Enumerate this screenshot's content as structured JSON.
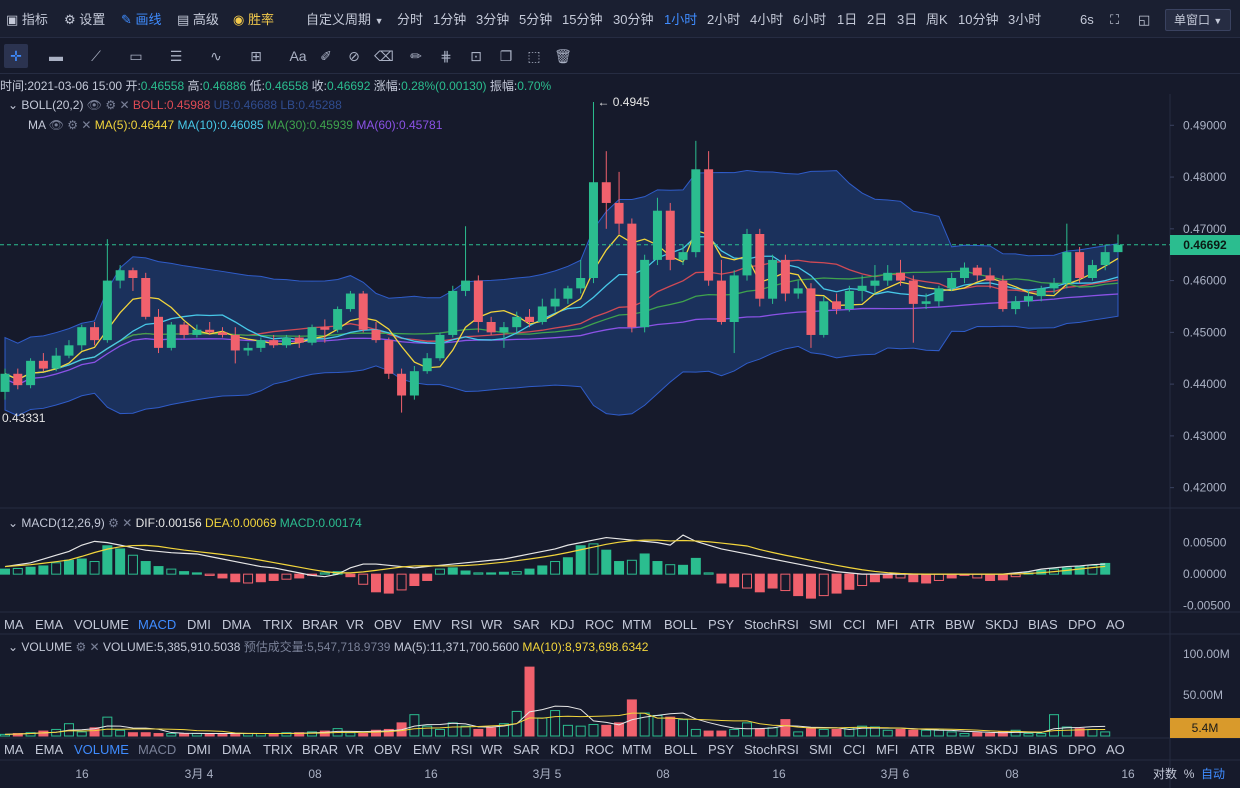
{
  "topbar": {
    "items": [
      {
        "label": "指标",
        "icon": "indicator-icon"
      },
      {
        "label": "设置",
        "icon": "gear-icon"
      },
      {
        "label": "画线",
        "icon": "pen-icon",
        "active": true
      },
      {
        "label": "高级",
        "icon": "advanced-icon"
      },
      {
        "label": "胜率",
        "icon": "winrate-icon"
      }
    ],
    "custom_period": "自定义周期",
    "periods": [
      "分时",
      "1分钟",
      "3分钟",
      "5分钟",
      "15分钟",
      "30分钟",
      "1小时",
      "2小时",
      "4小时",
      "6小时",
      "1日",
      "2日",
      "3日",
      "周K",
      "10分钟",
      "3小时"
    ],
    "active_period": "1小时",
    "refresh": "6s",
    "window_mode": "单窗口"
  },
  "toolbar": {
    "tools": [
      "crosshair-icon",
      "ruler-icon",
      "trendline-icon",
      "rectangle-icon",
      "parallel-lines-icon",
      "wave-icon",
      "expand-icon",
      "text-tool",
      "brush-icon",
      "magnet-icon",
      "eraser-icon",
      "pencil-icon",
      "fib-icon",
      "lock-icon",
      "copy-icon",
      "capture-icon",
      "trash-icon"
    ],
    "text_tool_label": "Aa"
  },
  "info": {
    "time_label": "时间:",
    "time": "2021-03-06 15:00",
    "open_label": "开:",
    "open": "0.46558",
    "high_label": "高:",
    "high": "0.46886",
    "low_label": "低:",
    "low": "0.46558",
    "close_label": "收:",
    "close": "0.46692",
    "change_label": "涨幅:",
    "change": "0.28%(0.00130)",
    "amp_label": "振幅:",
    "amp": "0.70%"
  },
  "legends": {
    "boll_name": "BOLL(20,2)",
    "boll_mid": "BOLL:0.45988",
    "boll_ub": "UB:0.46688",
    "boll_lb": "LB:0.45288",
    "ma_name": "MA",
    "ma5": "MA(5):0.46447",
    "ma10": "MA(10):0.46085",
    "ma30": "MA(30):0.45939",
    "ma60": "MA(60):0.45781",
    "macd_name": "MACD(12,26,9)",
    "dif": "DIF:0.00156",
    "dea": "DEA:0.00069",
    "macd": "MACD:0.00174",
    "vol_name": "VOLUME",
    "vol": "VOLUME:5,385,910.5038",
    "vol_est": "预估成交量:5,547,718.9739",
    "vol_ma5": "MA(5):11,371,700.5600",
    "vol_ma10": "MA(10):8,973,698.6342"
  },
  "indicator_tabs": [
    "MA",
    "EMA",
    "VOLUME",
    "MACD",
    "DMI",
    "DMA",
    "TRIX",
    "BRAR",
    "VR",
    "OBV",
    "EMV",
    "RSI",
    "WR",
    "SAR",
    "KDJ",
    "ROC",
    "MTM",
    "BOLL",
    "PSY",
    "StochRSI",
    "SMI",
    "CCI",
    "MFI",
    "ATR",
    "BBW",
    "SKDJ",
    "BIAS",
    "DPO",
    "AO"
  ],
  "indicator_tabs_active_1": "MACD",
  "indicator_tabs_active_2": "VOLUME",
  "price_axis": [
    "0.49000",
    "0.48000",
    "0.47000",
    "0.46000",
    "0.45000",
    "0.44000",
    "0.43000",
    "0.42000"
  ],
  "macd_axis": [
    "0.00500",
    "0.00000",
    "-0.00500"
  ],
  "vol_axis": [
    "100.00M",
    "50.00M"
  ],
  "current_price": "0.46692",
  "current_volume": "5.4M",
  "high_marker": "← 0.4945",
  "low_marker": "0.43331",
  "time_axis": [
    "16",
    "3月 4",
    "08",
    "16",
    "3月 5",
    "08",
    "16",
    "3月 6",
    "08",
    "16"
  ],
  "bottom_right": {
    "log": "对数",
    "pct": "%",
    "auto": "自动"
  },
  "colors": {
    "up": "#2bbd8f",
    "down": "#f0616d",
    "ma5": "#f2d53c",
    "ma10": "#47c8e8",
    "ma30": "#3fa34d",
    "ma60": "#8b52e6",
    "boll_mid": "#d04a55",
    "band": "#1d3a6e",
    "accent": "#3f8cff"
  },
  "chart_data": {
    "type": "candlestick",
    "interval": "1h",
    "x_range": [
      "2021-03-03 15:00",
      "2021-03-06 15:00"
    ],
    "candles": [
      [
        0.4385,
        0.442,
        0.437,
        0.443
      ],
      [
        0.442,
        0.4398,
        0.439,
        0.443
      ],
      [
        0.4398,
        0.4445,
        0.4392,
        0.445
      ],
      [
        0.4445,
        0.443,
        0.4425,
        0.446
      ],
      [
        0.443,
        0.4455,
        0.4425,
        0.447
      ],
      [
        0.4455,
        0.4475,
        0.445,
        0.4485
      ],
      [
        0.4475,
        0.451,
        0.4465,
        0.4515
      ],
      [
        0.451,
        0.4485,
        0.4475,
        0.452
      ],
      [
        0.4485,
        0.46,
        0.448,
        0.468
      ],
      [
        0.46,
        0.462,
        0.4585,
        0.463
      ],
      [
        0.462,
        0.4605,
        0.458,
        0.4625
      ],
      [
        0.4605,
        0.453,
        0.4525,
        0.4615
      ],
      [
        0.453,
        0.447,
        0.446,
        0.4545
      ],
      [
        0.447,
        0.4515,
        0.4465,
        0.452
      ],
      [
        0.4515,
        0.4495,
        0.4488,
        0.452
      ],
      [
        0.4495,
        0.4505,
        0.449,
        0.4515
      ],
      [
        0.4505,
        0.45,
        0.4495,
        0.452
      ],
      [
        0.45,
        0.4495,
        0.449,
        0.451
      ],
      [
        0.4495,
        0.4465,
        0.444,
        0.451
      ],
      [
        0.4465,
        0.447,
        0.4455,
        0.448
      ],
      [
        0.447,
        0.4485,
        0.4462,
        0.449
      ],
      [
        0.4485,
        0.4475,
        0.447,
        0.4495
      ],
      [
        0.4475,
        0.449,
        0.447,
        0.4495
      ],
      [
        0.449,
        0.448,
        0.447,
        0.4495
      ],
      [
        0.448,
        0.451,
        0.4475,
        0.4515
      ],
      [
        0.451,
        0.4505,
        0.448,
        0.4525
      ],
      [
        0.4505,
        0.4545,
        0.45,
        0.455
      ],
      [
        0.4545,
        0.4575,
        0.454,
        0.458
      ],
      [
        0.4575,
        0.4505,
        0.45,
        0.458
      ],
      [
        0.4505,
        0.4485,
        0.448,
        0.452
      ],
      [
        0.4485,
        0.442,
        0.441,
        0.449
      ],
      [
        0.442,
        0.4378,
        0.4345,
        0.443
      ],
      [
        0.4378,
        0.4425,
        0.437,
        0.4435
      ],
      [
        0.4425,
        0.445,
        0.442,
        0.446
      ],
      [
        0.445,
        0.4495,
        0.4445,
        0.45
      ],
      [
        0.4495,
        0.458,
        0.449,
        0.459
      ],
      [
        0.458,
        0.46,
        0.457,
        0.4705
      ],
      [
        0.46,
        0.452,
        0.45,
        0.461
      ],
      [
        0.452,
        0.45,
        0.4495,
        0.453
      ],
      [
        0.45,
        0.451,
        0.447,
        0.452
      ],
      [
        0.451,
        0.453,
        0.45,
        0.454
      ],
      [
        0.453,
        0.452,
        0.451,
        0.4545
      ],
      [
        0.452,
        0.455,
        0.4515,
        0.4565
      ],
      [
        0.455,
        0.4565,
        0.454,
        0.4585
      ],
      [
        0.4565,
        0.4585,
        0.4555,
        0.459
      ],
      [
        0.4585,
        0.4605,
        0.4575,
        0.464
      ],
      [
        0.4605,
        0.479,
        0.4595,
        0.4945
      ],
      [
        0.479,
        0.475,
        0.47,
        0.485
      ],
      [
        0.475,
        0.471,
        0.469,
        0.481
      ],
      [
        0.471,
        0.451,
        0.45,
        0.472
      ],
      [
        0.451,
        0.464,
        0.45,
        0.465
      ],
      [
        0.464,
        0.4735,
        0.463,
        0.476
      ],
      [
        0.4735,
        0.464,
        0.462,
        0.475
      ],
      [
        0.464,
        0.4655,
        0.463,
        0.467
      ],
      [
        0.4655,
        0.4815,
        0.4645,
        0.487
      ],
      [
        0.4815,
        0.46,
        0.459,
        0.485
      ],
      [
        0.46,
        0.452,
        0.4515,
        0.464
      ],
      [
        0.452,
        0.461,
        0.446,
        0.462
      ],
      [
        0.461,
        0.469,
        0.46,
        0.47
      ],
      [
        0.469,
        0.4565,
        0.455,
        0.47
      ],
      [
        0.4565,
        0.464,
        0.4555,
        0.465
      ],
      [
        0.464,
        0.4575,
        0.456,
        0.465
      ],
      [
        0.4575,
        0.4585,
        0.4565,
        0.46
      ],
      [
        0.4585,
        0.4495,
        0.447,
        0.4595
      ],
      [
        0.4495,
        0.456,
        0.449,
        0.457
      ],
      [
        0.456,
        0.4545,
        0.4535,
        0.4575
      ],
      [
        0.4545,
        0.458,
        0.454,
        0.459
      ],
      [
        0.458,
        0.459,
        0.456,
        0.461
      ],
      [
        0.459,
        0.46,
        0.4575,
        0.463
      ],
      [
        0.46,
        0.4615,
        0.459,
        0.463
      ],
      [
        0.4615,
        0.46,
        0.459,
        0.464
      ],
      [
        0.46,
        0.4555,
        0.448,
        0.461
      ],
      [
        0.4555,
        0.456,
        0.4545,
        0.4575
      ],
      [
        0.456,
        0.4585,
        0.455,
        0.459
      ],
      [
        0.4585,
        0.4605,
        0.458,
        0.4615
      ],
      [
        0.4605,
        0.4625,
        0.4595,
        0.4635
      ],
      [
        0.4625,
        0.461,
        0.46,
        0.463
      ],
      [
        0.461,
        0.46,
        0.4585,
        0.4625
      ],
      [
        0.46,
        0.4545,
        0.454,
        0.461
      ],
      [
        0.4545,
        0.456,
        0.4535,
        0.457
      ],
      [
        0.456,
        0.457,
        0.455,
        0.458
      ],
      [
        0.457,
        0.4585,
        0.456,
        0.459
      ],
      [
        0.4585,
        0.4595,
        0.4575,
        0.4605
      ],
      [
        0.4595,
        0.4655,
        0.4585,
        0.471
      ],
      [
        0.4655,
        0.4605,
        0.4595,
        0.4665
      ],
      [
        0.4605,
        0.463,
        0.46,
        0.464
      ],
      [
        0.463,
        0.4655,
        0.462,
        0.467
      ],
      [
        0.4655,
        0.4669,
        0.4655,
        0.4689
      ]
    ],
    "macd_hist": [
      0.0008,
      0.0009,
      0.0011,
      0.0013,
      0.0018,
      0.0022,
      0.0024,
      0.002,
      0.0045,
      0.004,
      0.003,
      0.002,
      0.0012,
      0.0008,
      0.0004,
      0.0002,
      -0.0002,
      -0.0006,
      -0.0012,
      -0.0014,
      -0.0012,
      -0.001,
      -0.0008,
      -0.0006,
      -0.0002,
      0.0002,
      0.0004,
      -0.0004,
      -0.0016,
      -0.0028,
      -0.003,
      -0.0025,
      -0.0018,
      -0.001,
      0.0008,
      0.001,
      0.0005,
      0.0002,
      0.0002,
      0.0003,
      0.0004,
      0.0008,
      0.0013,
      0.002,
      0.0026,
      0.0045,
      0.0048,
      0.0038,
      0.002,
      0.0022,
      0.0032,
      0.002,
      0.0015,
      0.0014,
      0.0025,
      0.0002,
      -0.0014,
      -0.002,
      -0.0022,
      -0.0028,
      -0.0022,
      -0.0026,
      -0.0034,
      -0.0038,
      -0.0034,
      -0.003,
      -0.0024,
      -0.0018,
      -0.0012,
      -0.0006,
      -0.0006,
      -0.0012,
      -0.0014,
      -0.001,
      -0.0006,
      -0.0002,
      -0.0006,
      -0.001,
      -0.0009,
      -0.0004,
      0.0002,
      0.0006,
      0.0008,
      0.001,
      0.0012,
      0.0014,
      0.0017
    ],
    "macd_dif": [
      0.0012,
      0.0015,
      0.0018,
      0.0024,
      0.003,
      0.0036,
      0.0046,
      0.0052,
      0.005,
      0.0046,
      0.0042,
      0.0038,
      0.0036,
      0.0034,
      0.0033,
      0.0032,
      0.0028,
      0.0024,
      0.002,
      0.0016,
      0.0012,
      0.001,
      0.0006,
      0.0002,
      -0.0002,
      -0.0004,
      0.0,
      0.001,
      0.0016,
      0.0016,
      0.0014,
      0.0012,
      0.001,
      0.0012,
      0.0014,
      0.0016,
      0.0018,
      0.002,
      0.0022,
      0.0024,
      0.0028,
      0.0032,
      0.0036,
      0.004,
      0.0046,
      0.005,
      0.0054,
      0.0058,
      0.0056,
      0.0054,
      0.0052,
      0.005,
      0.0046,
      0.0062,
      0.0052,
      0.0046,
      0.004,
      0.0036,
      0.0032,
      0.0028,
      0.0024,
      0.002,
      0.0016,
      0.0012,
      0.0008,
      0.0004,
      0.0002,
      0.0,
      0.0,
      0.0,
      0.0,
      0.0,
      0.0,
      0.0,
      0.0,
      0.0,
      0.0,
      0.0,
      0.0,
      0.0002,
      0.0004,
      0.0008,
      0.001,
      0.0012,
      0.0013,
      0.0015,
      0.0016
    ],
    "volume_m": [
      2,
      3,
      4,
      6,
      8,
      15,
      5,
      10,
      23,
      7,
      4,
      4,
      3,
      3,
      3,
      3,
      3,
      3,
      3,
      3,
      3,
      3,
      4,
      4,
      5,
      6,
      9,
      4,
      3,
      7,
      8,
      16,
      26,
      12,
      8,
      16,
      12,
      8,
      10,
      15,
      30,
      84,
      22,
      31,
      13,
      12,
      14,
      13,
      16,
      44,
      28,
      25,
      23,
      20,
      8,
      6,
      6,
      8,
      16,
      9,
      10,
      20,
      5,
      9,
      8,
      8,
      10,
      12,
      11,
      7,
      8,
      7,
      7,
      7,
      5,
      3,
      4,
      3,
      5,
      7,
      3,
      3,
      26,
      11,
      9,
      8,
      5
    ]
  }
}
